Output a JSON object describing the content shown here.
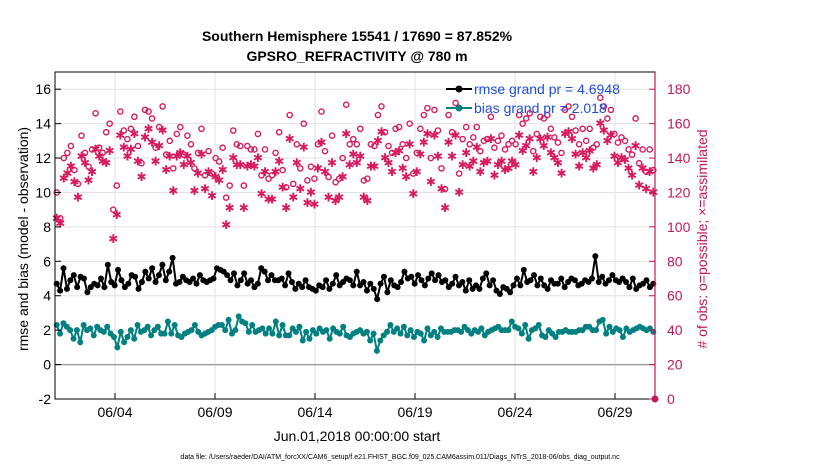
{
  "chart_data": {
    "type": "line",
    "title": "Southern Hemisphere 15541 / 17690 = 87.852%",
    "subtitle": "GPSRO_REFRACTIVITY @ 780 m",
    "xlabel": "Jun.01,2018 00:00:00 start",
    "ylabel_left": "rmse and bias (model - observation)",
    "ylabel_right": "# of obs: o=possible; ×=assimilated",
    "footnote": "data file: /Users/raeder/DAI/ATM_forcXX/CAM6_setup/f.e21.FHIST_BGC.f09_025.CAM6assim.011/Diags_NTrS_2018-06/obs_diag_output.nc",
    "xlim": [
      0,
      30
    ],
    "ylim_left": [
      -2,
      17
    ],
    "ylim_right": [
      0,
      190
    ],
    "x_ticks": [
      3,
      8,
      13,
      18,
      23,
      28
    ],
    "x_tick_labels": [
      "06/04",
      "06/09",
      "06/14",
      "06/19",
      "06/24",
      "06/29"
    ],
    "yleft_ticks": [
      -2,
      0,
      2,
      4,
      6,
      8,
      10,
      12,
      14,
      16
    ],
    "yleft_tick_labels": [
      "-2",
      "0",
      "2",
      "4",
      "6",
      "8",
      "10",
      "12",
      "14",
      "16"
    ],
    "yright_ticks": [
      0,
      20,
      40,
      60,
      80,
      100,
      120,
      140,
      160,
      180
    ],
    "yright_tick_labels": [
      "0",
      "20",
      "40",
      "60",
      "80",
      "100",
      "120",
      "140",
      "160",
      "180"
    ],
    "legend": [
      {
        "label": "rmse grand pr = 4.6948",
        "color": "#000000"
      },
      {
        "label": "bias grand pr = 2.018",
        "color": "#008080"
      }
    ],
    "colors": {
      "rmse": "#000000",
      "bias": "#008080",
      "obs": "#d81b60",
      "axis_right": "#c2185b",
      "legend_text": "#1f4fd8"
    },
    "series": [
      {
        "name": "rmse",
        "values": [
          4.7,
          4.3,
          5.6,
          4.4,
          4.9,
          5.2,
          4.5,
          5.1,
          5.0,
          4.2,
          4.5,
          4.7,
          4.6,
          5.0,
          4.5,
          5.8,
          4.8,
          4.6,
          5.5,
          4.9,
          4.5,
          4.7,
          5.2,
          5.1,
          4.4,
          4.8,
          5.4,
          5.0,
          5.6,
          4.8,
          5.2,
          5.8,
          4.9,
          5.4,
          6.2,
          4.7,
          4.8,
          5.1,
          4.9,
          4.8,
          5.0,
          4.7,
          5.2,
          4.9,
          4.8,
          4.9,
          5.0,
          5.6,
          5.5,
          5.4,
          5.2,
          4.9,
          5.3,
          4.6,
          4.9,
          5.3,
          4.7,
          4.9,
          4.5,
          4.7,
          5.6,
          5.4,
          4.9,
          5.2,
          4.9,
          4.9,
          5.0,
          4.6,
          5.3,
          4.8,
          4.4,
          4.7,
          4.5,
          4.9,
          4.5,
          4.4,
          4.3,
          4.6,
          4.5,
          4.9,
          4.4,
          4.7,
          5.2,
          4.6,
          4.8,
          5.0,
          4.9,
          4.6,
          5.4,
          4.6,
          4.8,
          4.3,
          4.7,
          4.4,
          3.8,
          4.7,
          5.1,
          4.2,
          4.9,
          4.6,
          4.5,
          4.8,
          5.4,
          5.0,
          5.1,
          4.7,
          5.2,
          4.9,
          4.6,
          5.0,
          5.3,
          4.9,
          5.2,
          4.8,
          4.9,
          4.5,
          4.7,
          5.1,
          4.6,
          4.8,
          4.3,
          4.9,
          4.4,
          4.6,
          4.4,
          5.0,
          5.3,
          4.6,
          4.9,
          4.3,
          4.1,
          4.5,
          4.4,
          4.2,
          4.6,
          5.0,
          4.6,
          5.5,
          4.8,
          4.9,
          5.2,
          4.6,
          5.0,
          4.6,
          4.4,
          4.9,
          4.7,
          4.7,
          5.0,
          4.5,
          4.8,
          5.0,
          4.9,
          4.6,
          4.7,
          4.9,
          4.8,
          5.0,
          6.3,
          4.8,
          5.1,
          4.7,
          4.9,
          5.2,
          4.9,
          4.8,
          5.0,
          4.8,
          4.5,
          5.0,
          4.4,
          4.6,
          4.7,
          4.9,
          4.5,
          4.7
        ]
      },
      {
        "name": "bias",
        "values": [
          2.3,
          1.8,
          2.4,
          2.2,
          2.0,
          1.5,
          2.0,
          1.3,
          2.3,
          2.0,
          2.1,
          1.7,
          2.2,
          2.0,
          1.9,
          2.2,
          1.8,
          1.6,
          1.0,
          1.9,
          1.3,
          1.6,
          2.0,
          1.5,
          2.3,
          1.9,
          2.0,
          2.2,
          1.7,
          2.0,
          2.2,
          1.8,
          1.8,
          2.5,
          1.8,
          2.3,
          1.7,
          1.6,
          1.8,
          1.9,
          2.0,
          2.3,
          1.9,
          1.7,
          1.8,
          1.9,
          2.0,
          2.2,
          2.3,
          2.3,
          2.0,
          2.6,
          1.8,
          2.0,
          2.8,
          2.5,
          2.4,
          1.9,
          2.3,
          1.9,
          2.0,
          2.1,
          1.8,
          2.1,
          1.8,
          2.5,
          1.7,
          2.3,
          1.7,
          1.7,
          2.1,
          1.9,
          2.2,
          1.4,
          1.9,
          1.5,
          2.0,
          1.8,
          2.1,
          1.9,
          2.0,
          1.5,
          2.1,
          1.9,
          1.8,
          2.2,
          1.7,
          1.6,
          1.8,
          1.9,
          2.0,
          1.8,
          1.9,
          1.4,
          1.8,
          0.8,
          1.4,
          1.7,
          1.9,
          2.3,
          1.9,
          2.1,
          1.8,
          2.2,
          1.7,
          2.0,
          1.6,
          1.9,
          1.8,
          1.4,
          2.1,
          1.7,
          1.9,
          1.6,
          2.1,
          1.9,
          1.9,
          1.9,
          2.0,
          2.0,
          1.9,
          2.2,
          2.0,
          1.8,
          2.0,
          1.9,
          2.1,
          1.7,
          1.9,
          2.0,
          2.1,
          2.2,
          2.0,
          2.0,
          2.0,
          2.5,
          2.2,
          2.1,
          1.8,
          2.3,
          1.5,
          2.0,
          2.1,
          2.3,
          1.7,
          1.6,
          2.0,
          1.8,
          1.6,
          1.9,
          1.9,
          2.0,
          1.9,
          1.9,
          1.9,
          2.0,
          2.0,
          2.2,
          2.2,
          2.0,
          2.0,
          2.5,
          2.6,
          1.8,
          2.2,
          1.9,
          2.1,
          2.0,
          1.6,
          2.1,
          1.9,
          2.0,
          2.1,
          2.2,
          2.1,
          2.0,
          2.1,
          1.9
        ]
      },
      {
        "name": "possible",
        "values": [
          120,
          105,
          140,
          143,
          147,
          133,
          125,
          153,
          143,
          135,
          145,
          166,
          146,
          143,
          155,
          160,
          110,
          124,
          167,
          156,
          151,
          157,
          164,
          147,
          137,
          168,
          167,
          163,
          146,
          158,
          170,
          142,
          150,
          134,
          154,
          158,
          142,
          153,
          148,
          134,
          143,
          157,
          130,
          144,
          131,
          140,
          138,
          146,
          117,
          124,
          156,
          148,
          147,
          124,
          147,
          145,
          145,
          154,
          130,
          145,
          128,
          130,
          143,
          155,
          133,
          123,
          165,
          125,
          148,
          134,
          160,
          127,
          135,
          128,
          148,
          167,
          144,
          129,
          153,
          126,
          128,
          140,
          171,
          148,
          151,
          148,
          157,
          127,
          128,
          148,
          147,
          165,
          170,
          155,
          147,
          143,
          157,
          158,
          148,
          140,
          160,
          131,
          143,
          157,
          165,
          169,
          140,
          168,
          156,
          134,
          122,
          165,
          155,
          172,
          131,
          151,
          158,
          148,
          152,
          158,
          144,
          150,
          151,
          164,
          146,
          150,
          153,
          145,
          148,
          150,
          148,
          165,
          160,
          163,
          166,
          144,
          154,
          164,
          163,
          165,
          157,
          152,
          149,
          143,
          168,
          170,
          164,
          156,
          148,
          157,
          150,
          157,
          146,
          148,
          175,
          170,
          163,
          168,
          154,
          149,
          152,
          150,
          145,
          142,
          163,
          137,
          145,
          132,
          145,
          133
        ]
      },
      {
        "name": "assimilated",
        "values": [
          105,
          102,
          128,
          131,
          135,
          126,
          117,
          141,
          137,
          127,
          132,
          145,
          141,
          138,
          137,
          144,
          93,
          107,
          153,
          146,
          141,
          145,
          154,
          138,
          129,
          152,
          157,
          149,
          138,
          147,
          156,
          133,
          141,
          121,
          141,
          143,
          136,
          141,
          137,
          121,
          131,
          142,
          122,
          132,
          118,
          129,
          127,
          133,
          101,
          111,
          140,
          136,
          136,
          111,
          135,
          136,
          135,
          140,
          119,
          132,
          116,
          116,
          132,
          138,
          123,
          111,
          151,
          117,
          137,
          122,
          146,
          114,
          120,
          113,
          134,
          149,
          132,
          117,
          137,
          115,
          117,
          129,
          154,
          136,
          142,
          137,
          141,
          117,
          115,
          135,
          135,
          150,
          155,
          140,
          137,
          132,
          143,
          144,
          134,
          129,
          148,
          119,
          132,
          142,
          149,
          154,
          126,
          153,
          141,
          122,
          111,
          149,
          141,
          153,
          120,
          136,
          143,
          135,
          138,
          146,
          132,
          137,
          138,
          151,
          130,
          136,
          138,
          133,
          134,
          138,
          136,
          153,
          144,
          147,
          151,
          132,
          140,
          151,
          147,
          152,
          143,
          140,
          137,
          131,
          154,
          155,
          151,
          142,
          135,
          143,
          140,
          144,
          134,
          136,
          160,
          156,
          150,
          153,
          141,
          137,
          140,
          139,
          134,
          130,
          147,
          124,
          134,
          122,
          132,
          120
        ]
      }
    ]
  }
}
